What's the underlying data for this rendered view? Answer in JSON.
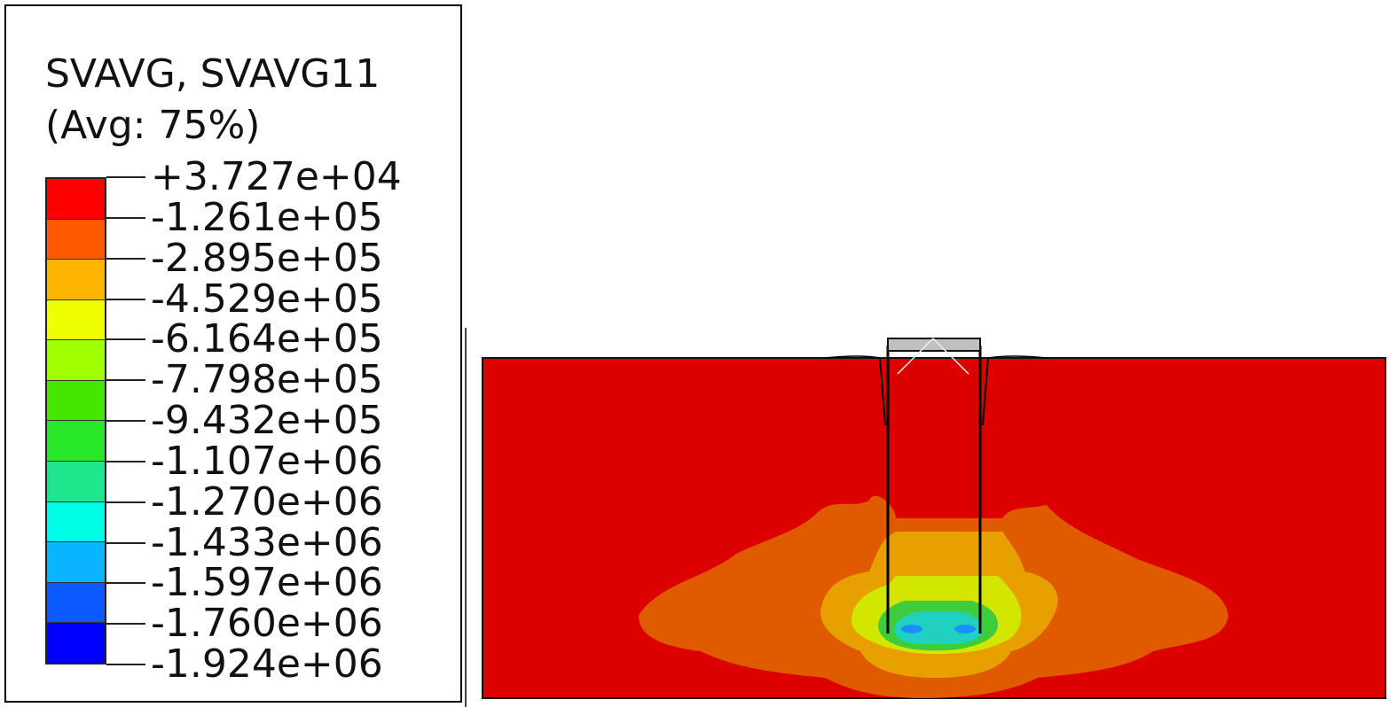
{
  "legend": {
    "title": "SVAVG, SVAVG11",
    "subtitle": "(Avg: 75%)",
    "levels": [
      "+3.727e+04",
      "-1.261e+05",
      "-2.895e+05",
      "-4.529e+05",
      "-6.164e+05",
      "-7.798e+05",
      "-9.432e+05",
      "-1.107e+06",
      "-1.270e+06",
      "-1.433e+06",
      "-1.597e+06",
      "-1.760e+06",
      "-1.924e+06"
    ],
    "band_colors": [
      "#ff0000",
      "#ff5a00",
      "#ffb400",
      "#f0ff00",
      "#a0ff00",
      "#46e600",
      "#28e628",
      "#1ee68c",
      "#00ffe6",
      "#0ab4ff",
      "#0a5aff",
      "#0000ff"
    ]
  },
  "plot": {
    "field_colors": {
      "soil_top": "#dd0000",
      "orange_zone": "#e05a00",
      "amber_zone": "#e8a000",
      "yellow_zone": "#d2e600",
      "green_zone": "#3ccc3c",
      "cyan_zone": "#20d0c0",
      "blue_zone": "#1890ff",
      "pile_cap": "#c0c0c0"
    }
  }
}
